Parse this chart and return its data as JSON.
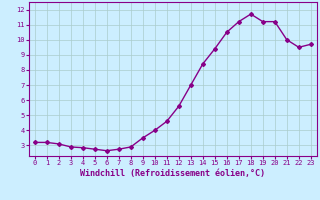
{
  "x": [
    0,
    1,
    2,
    3,
    4,
    5,
    6,
    7,
    8,
    9,
    10,
    11,
    12,
    13,
    14,
    15,
    16,
    17,
    18,
    19,
    20,
    21,
    22,
    23
  ],
  "y": [
    3.2,
    3.2,
    3.1,
    2.9,
    2.85,
    2.75,
    2.65,
    2.75,
    2.9,
    3.5,
    4.0,
    4.6,
    5.6,
    7.0,
    8.4,
    9.4,
    10.5,
    11.2,
    11.7,
    11.2,
    11.2,
    10.0,
    9.5,
    9.7
  ],
  "line_color": "#880088",
  "marker": "D",
  "marker_size": 2.0,
  "line_width": 1.0,
  "bg_color": "#cceeff",
  "grid_color": "#aacccc",
  "xlabel": "Windchill (Refroidissement éolien,°C)",
  "ylabel": "",
  "xlim": [
    -0.5,
    23.5
  ],
  "ylim": [
    2.3,
    12.5
  ],
  "yticks": [
    3,
    4,
    5,
    6,
    7,
    8,
    9,
    10,
    11,
    12
  ],
  "xticks": [
    0,
    1,
    2,
    3,
    4,
    5,
    6,
    7,
    8,
    9,
    10,
    11,
    12,
    13,
    14,
    15,
    16,
    17,
    18,
    19,
    20,
    21,
    22,
    23
  ],
  "tick_fontsize": 5.0,
  "label_fontsize": 6.0,
  "label_color": "#880088",
  "tick_color": "#880088",
  "spine_color": "#880088"
}
